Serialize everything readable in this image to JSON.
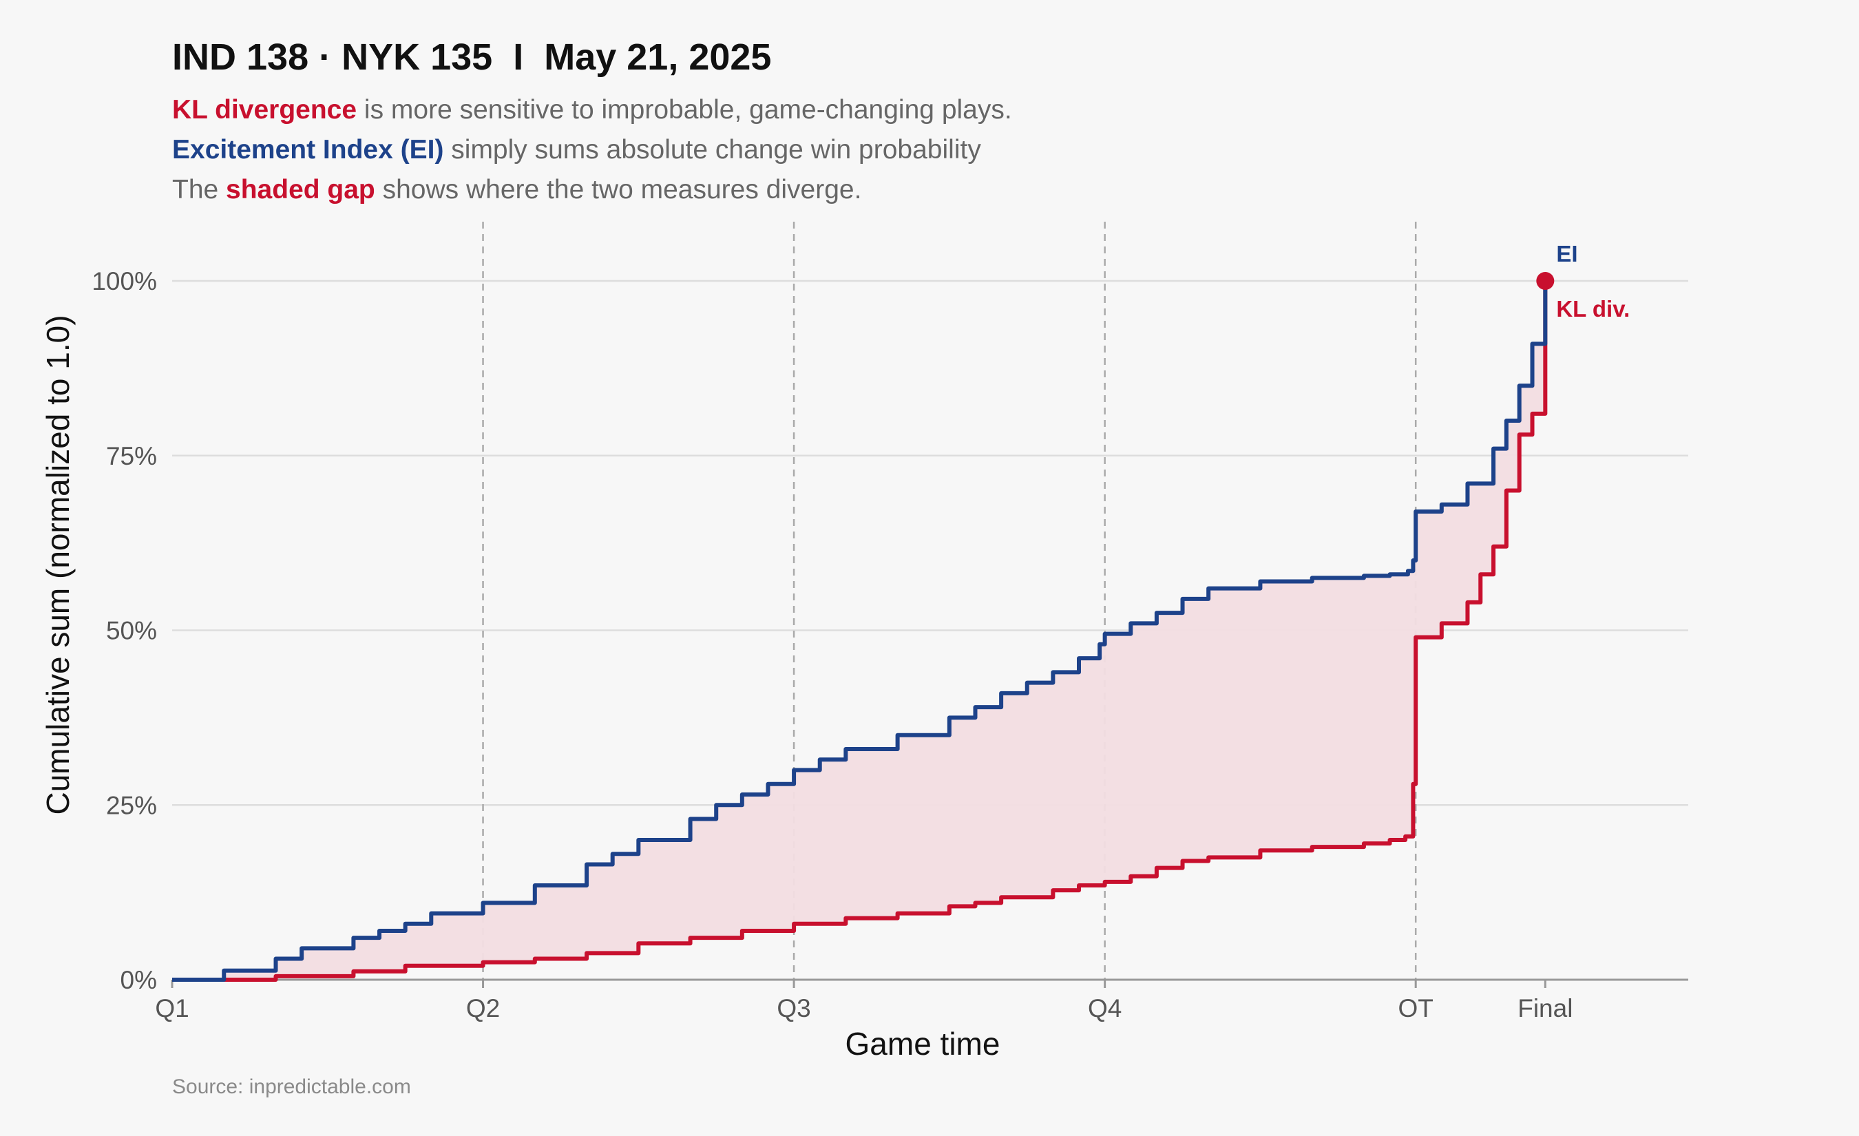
{
  "title": "IND 138 · NYK 135  I  May 21, 2025",
  "subtitle": {
    "line1_highlight": "KL divergence",
    "line1_rest": " is more sensitive to improbable, game-changing plays.",
    "line2_highlight": "Excitement Index (EI)",
    "line2_rest": " simply sums absolute change win probability",
    "line3_pre": "The ",
    "line3_highlight": "shaded gap",
    "line3_rest": " shows where the two measures diverge."
  },
  "source": "Source: inpredictable.com",
  "colors": {
    "kl": "#c8102e",
    "ei": "#1d428a",
    "gap": "#f2dde1",
    "grid": "#dddddd",
    "period_line": "#aaaaaa"
  },
  "chart_data": {
    "type": "line",
    "xlabel": "Game time",
    "ylabel": "Cumulative sum (normalized to 1.0)",
    "x_unit": "game minutes",
    "xlim": [
      0,
      58.2
    ],
    "ylim": [
      0,
      1.0
    ],
    "y_ticks": [
      0,
      0.25,
      0.5,
      0.75,
      1.0
    ],
    "y_tick_labels": [
      "0%",
      "25%",
      "50%",
      "75%",
      "100%"
    ],
    "x_ticks": [
      0,
      12,
      24,
      36,
      48,
      53
    ],
    "x_tick_labels": [
      "Q1",
      "Q2",
      "Q3",
      "Q4",
      "OT",
      "Final"
    ],
    "period_lines": [
      12,
      24,
      36,
      48
    ],
    "shaded_gap_between": [
      "EI",
      "KL div."
    ],
    "series": [
      {
        "name": "EI",
        "label": "EI",
        "x": [
          0,
          2,
          4,
          5,
          7,
          8,
          9,
          10,
          12,
          14,
          16,
          17,
          18,
          20,
          21,
          22,
          23,
          24,
          25,
          26,
          28,
          30,
          31,
          32,
          33,
          34,
          35,
          35.8,
          36,
          37,
          38,
          39,
          40,
          42,
          44,
          46,
          47,
          47.7,
          47.9,
          48,
          49,
          50,
          51,
          51.5,
          52,
          52.5,
          53
        ],
        "values": [
          0,
          0.013,
          0.03,
          0.045,
          0.06,
          0.07,
          0.08,
          0.095,
          0.11,
          0.135,
          0.165,
          0.18,
          0.2,
          0.23,
          0.25,
          0.265,
          0.28,
          0.3,
          0.315,
          0.33,
          0.35,
          0.375,
          0.39,
          0.41,
          0.425,
          0.44,
          0.46,
          0.48,
          0.495,
          0.51,
          0.525,
          0.545,
          0.56,
          0.57,
          0.575,
          0.578,
          0.58,
          0.585,
          0.6,
          0.67,
          0.68,
          0.71,
          0.76,
          0.8,
          0.85,
          0.91,
          1.0
        ]
      },
      {
        "name": "KL div.",
        "label": "KL div.",
        "x": [
          0,
          4,
          7,
          9,
          12,
          14,
          16,
          18,
          20,
          22,
          24,
          26,
          28,
          30,
          31,
          32,
          34,
          35,
          36,
          37,
          38,
          39,
          40,
          42,
          44,
          46,
          47,
          47.6,
          47.9,
          48,
          49,
          50,
          50.5,
          51,
          51.5,
          52,
          52.5,
          53
        ],
        "values": [
          0,
          0.005,
          0.012,
          0.02,
          0.025,
          0.03,
          0.038,
          0.052,
          0.06,
          0.07,
          0.08,
          0.088,
          0.095,
          0.105,
          0.11,
          0.118,
          0.128,
          0.135,
          0.14,
          0.148,
          0.16,
          0.17,
          0.175,
          0.185,
          0.19,
          0.195,
          0.2,
          0.205,
          0.28,
          0.49,
          0.51,
          0.54,
          0.58,
          0.62,
          0.7,
          0.78,
          0.81,
          1.0
        ]
      }
    ],
    "end_labels": [
      "EI",
      "KL div."
    ]
  }
}
